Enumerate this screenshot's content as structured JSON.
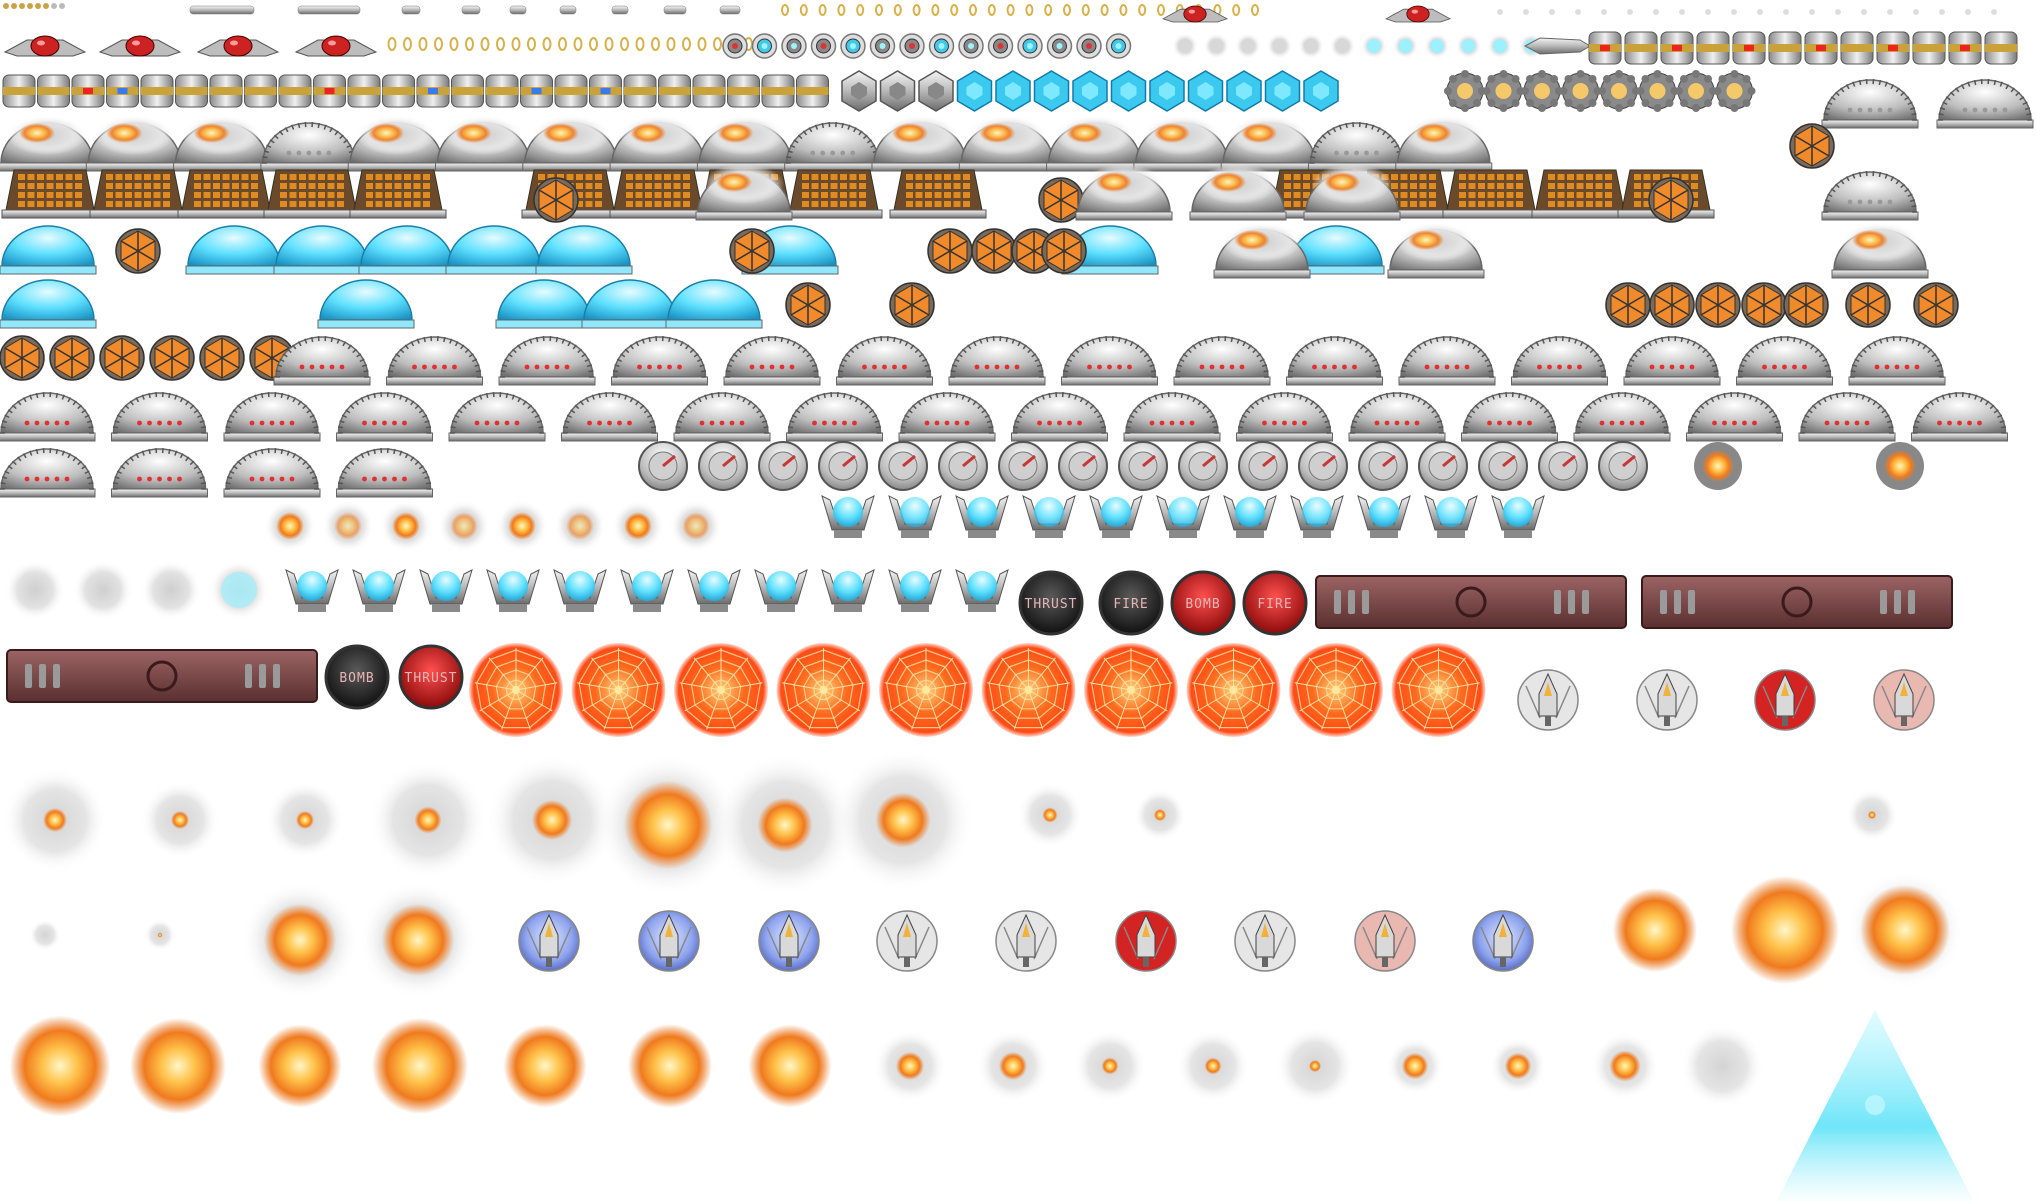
{
  "sheet": {
    "background": "#ffffff",
    "palette": {
      "metal_light": "#e9e9e9",
      "metal_mid": "#a8a8a8",
      "metal_dark": "#5a5a5a",
      "cyan": "#3fd6ff",
      "orange": "#ff6a1e",
      "red": "#d42323",
      "fire": "#ffb347",
      "panel": "#7a4848",
      "blue": "#7f95e6"
    }
  },
  "buttons": {
    "thrust": "THRUST",
    "fire": "FIRE",
    "bomb": "BOMB"
  },
  "sprite_rows": [
    {
      "name": "tiny-bullets-and-pipes",
      "icon": "pipe-icon"
    },
    {
      "name": "drone-enemies-and-capsules",
      "icon": "drone-icon"
    },
    {
      "name": "core-ring-and-hex-shields",
      "icon": "hex-icon"
    },
    {
      "name": "dome-smoke-frames",
      "icon": "dome-icon"
    },
    {
      "name": "grid-bunker-frames",
      "icon": "bunker-icon"
    },
    {
      "name": "cyan-dome-frames",
      "icon": "cyan-dome-icon"
    },
    {
      "name": "gear-dome-frames",
      "icon": "gear-dome-icon"
    },
    {
      "name": "turret-disc-frames",
      "icon": "turret-icon"
    },
    {
      "name": "cyan-claw-frames",
      "icon": "claw-icon"
    },
    {
      "name": "control-buttons-and-panels",
      "icon": "button-icon"
    },
    {
      "name": "web-target-frames",
      "icon": "web-icon"
    },
    {
      "name": "ship-badges",
      "icon": "ship-icon"
    },
    {
      "name": "explosion-frames",
      "icon": "explosion-icon"
    },
    {
      "name": "light-beam",
      "icon": "beam-icon"
    }
  ]
}
